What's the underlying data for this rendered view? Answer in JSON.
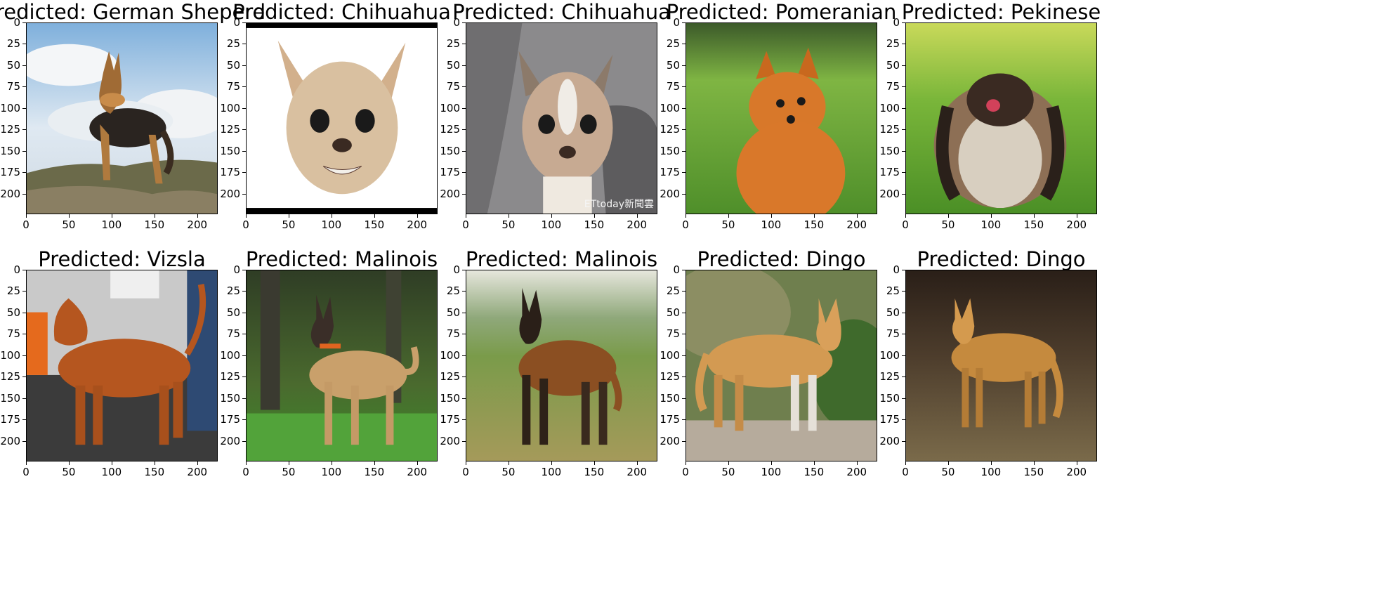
{
  "panels": [
    {
      "title": "Predicted: German Sheperd",
      "scene": "sky-hill",
      "dog": "shepherd"
    },
    {
      "title": "Predicted: Chihuahua",
      "scene": "white-bars",
      "dog": "chihuahua-face"
    },
    {
      "title": "Predicted: Chihuahua",
      "scene": "couch",
      "dog": "chihuahua-face2",
      "watermark": "ETtoday新聞雲"
    },
    {
      "title": "Predicted: Pomeranian",
      "scene": "grass",
      "dog": "pomeranian"
    },
    {
      "title": "Predicted: Pekinese",
      "scene": "grass-bright",
      "dog": "pekinese"
    },
    {
      "title": "Predicted: Vizsla",
      "scene": "indoor",
      "dog": "vizsla"
    },
    {
      "title": "Predicted: Malinois",
      "scene": "forest",
      "dog": "malinois"
    },
    {
      "title": "Predicted: Malinois",
      "scene": "meadow",
      "dog": "malinois-dark"
    },
    {
      "title": "Predicted: Dingo",
      "scene": "bush",
      "dog": "dingo"
    },
    {
      "title": "Predicted: Dingo",
      "scene": "dark-field",
      "dog": "dingo2"
    }
  ],
  "axes": {
    "y_ticks": [
      "0",
      "25",
      "50",
      "75",
      "100",
      "125",
      "150",
      "175",
      "200"
    ],
    "x_ticks": [
      "0",
      "50",
      "100",
      "150",
      "200"
    ],
    "y_values": [
      0,
      25,
      50,
      75,
      100,
      125,
      150,
      175,
      200
    ],
    "x_values": [
      0,
      50,
      100,
      150,
      200
    ],
    "xlim": [
      0,
      224
    ],
    "ylim": [
      224,
      0
    ]
  }
}
